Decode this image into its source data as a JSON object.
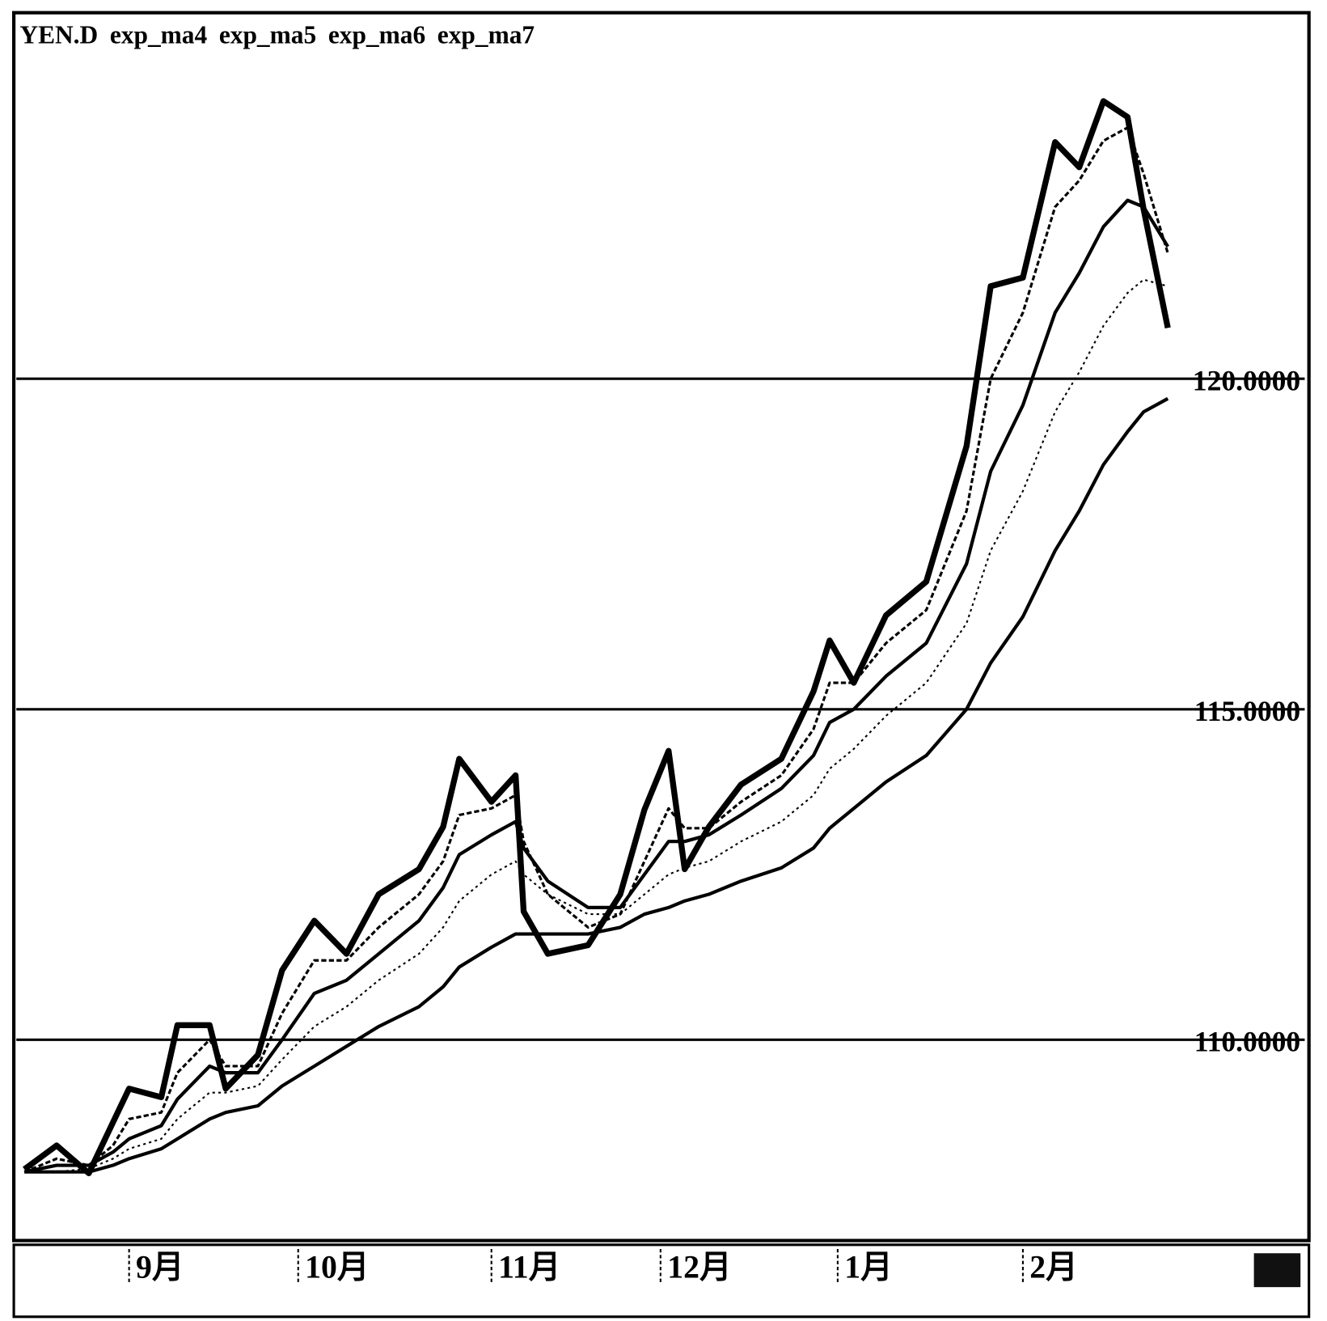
{
  "chart_data": {
    "type": "line",
    "x": [
      1,
      5,
      9,
      12,
      14,
      18,
      20,
      24,
      26,
      30,
      33,
      37,
      41,
      45,
      50,
      53,
      55,
      59,
      62,
      63,
      66,
      71,
      75,
      78,
      81,
      83,
      86,
      90,
      95,
      99,
      101,
      104,
      108,
      113,
      118,
      121,
      125,
      129,
      132,
      135,
      138,
      140,
      143
    ],
    "series": [
      {
        "name": "YEN.D",
        "color": "#000000",
        "values": [
          108.04,
          108.4,
          107.98,
          108.75,
          109.26,
          109.13,
          110.22,
          110.22,
          109.26,
          109.77,
          111.05,
          111.8,
          111.3,
          112.2,
          112.58,
          113.22,
          114.25,
          113.6,
          114.0,
          111.94,
          111.3,
          111.43,
          112.2,
          113.48,
          114.37,
          112.58,
          113.22,
          113.86,
          114.25,
          115.27,
          116.04,
          115.4,
          116.42,
          116.93,
          118.98,
          121.4,
          121.53,
          123.58,
          123.2,
          124.2,
          123.96,
          122.56,
          120.77
        ]
      },
      {
        "name": "exp_ma4",
        "color": "#000000",
        "values": [
          108.0,
          108.2,
          108.1,
          108.4,
          108.8,
          108.9,
          109.5,
          110.0,
          109.6,
          109.6,
          110.4,
          111.2,
          111.2,
          111.7,
          112.2,
          112.7,
          113.4,
          113.5,
          113.7,
          113.0,
          112.2,
          111.7,
          111.9,
          112.7,
          113.5,
          113.2,
          113.2,
          113.6,
          114.0,
          114.7,
          115.4,
          115.4,
          116.0,
          116.5,
          118.0,
          120.0,
          121.0,
          122.6,
          123.0,
          123.6,
          123.8,
          123.1,
          121.9
        ]
      },
      {
        "name": "exp_ma5",
        "color": "#000000",
        "values": [
          108.0,
          108.1,
          108.1,
          108.3,
          108.5,
          108.7,
          109.1,
          109.6,
          109.5,
          109.5,
          110.0,
          110.7,
          110.9,
          111.3,
          111.8,
          112.3,
          112.8,
          113.1,
          113.3,
          112.9,
          112.4,
          112.0,
          112.0,
          112.5,
          113.0,
          113.0,
          113.1,
          113.4,
          113.8,
          114.3,
          114.8,
          115.0,
          115.5,
          116.0,
          117.2,
          118.6,
          119.6,
          121.0,
          121.6,
          122.3,
          122.7,
          122.6,
          122.0
        ]
      },
      {
        "name": "exp_ma6",
        "color": "#000000",
        "values": [
          108.0,
          108.0,
          108.05,
          108.2,
          108.35,
          108.5,
          108.8,
          109.2,
          109.2,
          109.3,
          109.7,
          110.2,
          110.5,
          110.9,
          111.3,
          111.7,
          112.1,
          112.5,
          112.7,
          112.5,
          112.2,
          111.9,
          111.9,
          112.2,
          112.5,
          112.6,
          112.7,
          113.0,
          113.3,
          113.7,
          114.1,
          114.4,
          114.9,
          115.4,
          116.3,
          117.4,
          118.3,
          119.5,
          120.1,
          120.8,
          121.3,
          121.5,
          121.4
        ]
      },
      {
        "name": "exp_ma7",
        "color": "#000000",
        "values": [
          108.0,
          108.0,
          108.0,
          108.1,
          108.2,
          108.35,
          108.5,
          108.8,
          108.9,
          109.0,
          109.3,
          109.6,
          109.9,
          110.2,
          110.5,
          110.8,
          111.1,
          111.4,
          111.6,
          111.6,
          111.6,
          111.6,
          111.7,
          111.9,
          112.0,
          112.1,
          112.2,
          112.4,
          112.6,
          112.9,
          113.2,
          113.5,
          113.9,
          114.3,
          115.0,
          115.7,
          116.4,
          117.4,
          118.0,
          118.7,
          119.2,
          119.5,
          119.7
        ]
      }
    ],
    "xlim": [
      0,
      160
    ],
    "xticks": [
      {
        "value": 14,
        "label": "9月"
      },
      {
        "value": 35,
        "label": "10月"
      },
      {
        "value": 59,
        "label": "11月"
      },
      {
        "value": 80,
        "label": "12月"
      },
      {
        "value": 102,
        "label": "1月"
      },
      {
        "value": 125,
        "label": "2月"
      }
    ],
    "ylim": [
      107,
      125.5
    ],
    "yticks": [
      {
        "value": 110,
        "label": "110.0000"
      },
      {
        "value": 115,
        "label": "115.0000"
      },
      {
        "value": 120,
        "label": "120.0000"
      }
    ],
    "grid": true
  }
}
